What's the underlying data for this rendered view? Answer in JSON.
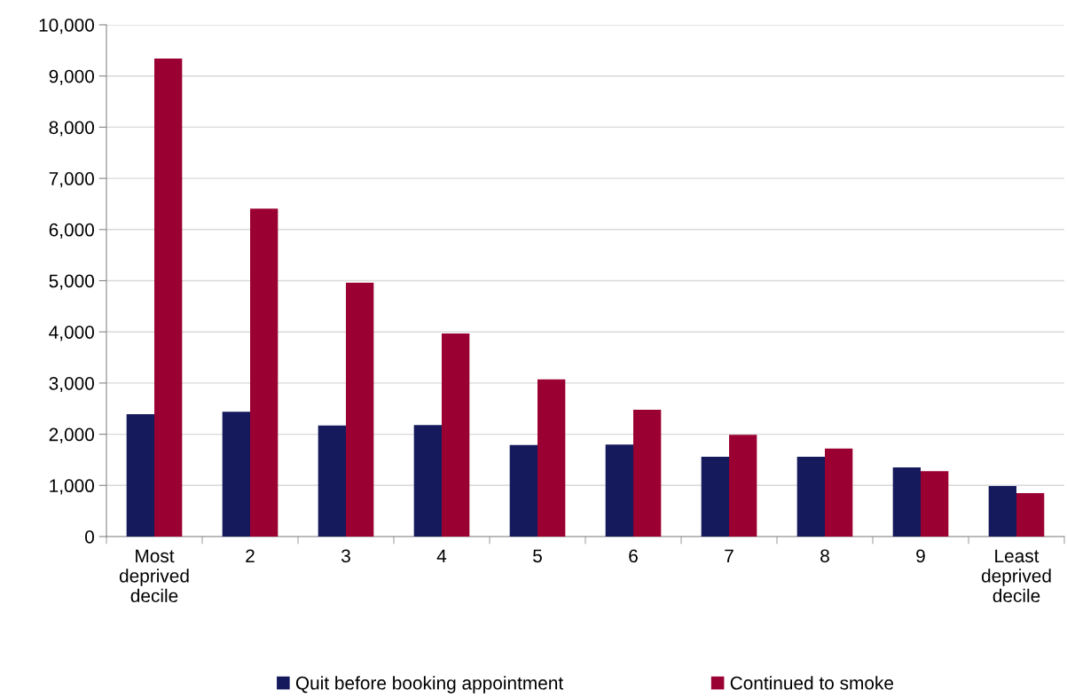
{
  "chart_data": {
    "type": "bar",
    "categories": [
      "Most\ndeprived\ndecile",
      "2",
      "3",
      "4",
      "5",
      "6",
      "7",
      "8",
      "9",
      "Least\ndeprived\ndecile"
    ],
    "series": [
      {
        "name": "Quit before booking appointment",
        "color": "#141a5c",
        "values": [
          2390,
          2440,
          2170,
          2180,
          1790,
          1800,
          1560,
          1560,
          1350,
          990
        ]
      },
      {
        "name": "Continued to smoke",
        "color": "#9b0033",
        "values": [
          9340,
          6410,
          4960,
          3970,
          3070,
          2480,
          1990,
          1720,
          1280,
          850
        ]
      }
    ],
    "ylim": [
      0,
      10000
    ],
    "yticks": [
      {
        "value": 0,
        "label": "0"
      },
      {
        "value": 1000,
        "label": "1,000"
      },
      {
        "value": 2000,
        "label": "2,000"
      },
      {
        "value": 3000,
        "label": "3,000"
      },
      {
        "value": 4000,
        "label": "4,000"
      },
      {
        "value": 5000,
        "label": "5,000"
      },
      {
        "value": 6000,
        "label": "6,000"
      },
      {
        "value": 7000,
        "label": "7,000"
      },
      {
        "value": 8000,
        "label": "8,000"
      },
      {
        "value": 9000,
        "label": "9,000"
      },
      {
        "value": 10000,
        "label": "10,000"
      }
    ],
    "grid": "y",
    "legend": "bottom"
  }
}
